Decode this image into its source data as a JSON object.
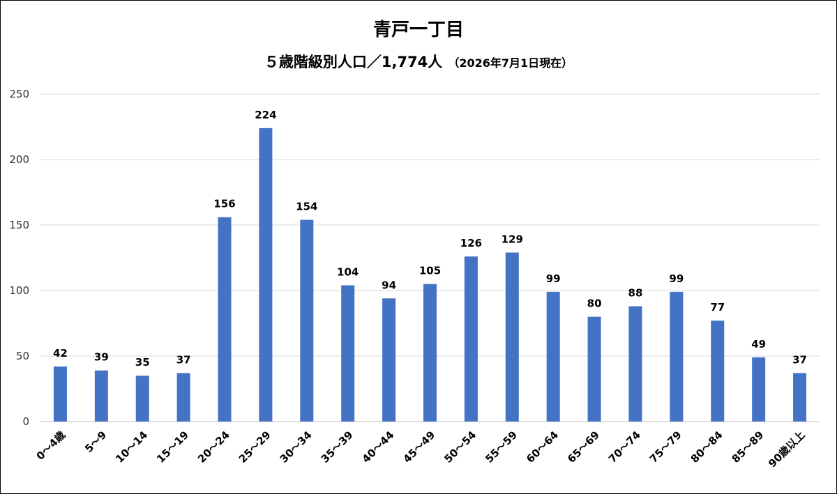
{
  "chart_data": {
    "type": "bar",
    "title": "青戸一丁目",
    "subtitle": "５歳階級別人口／1,774人",
    "subtitle_note": "（2026年7月1日現在）",
    "categories": [
      "0～4歳",
      "5～9",
      "10～14",
      "15～19",
      "20～24",
      "25～29",
      "30～34",
      "35～39",
      "40～44",
      "45～49",
      "50～54",
      "55～59",
      "60～64",
      "65～69",
      "70～74",
      "75～79",
      "80～84",
      "85～89",
      "90歳以上"
    ],
    "series": [
      {
        "values": [
          42,
          39,
          35,
          37,
          156,
          224,
          154,
          104,
          94,
          105,
          126,
          129,
          99,
          80,
          88,
          99,
          77,
          49,
          37
        ]
      }
    ],
    "xlabel": "",
    "ylabel": "",
    "ylim": [
      0,
      250
    ],
    "yticks": [
      0,
      50,
      100,
      150,
      200,
      250
    ],
    "grid": true,
    "legend": "none",
    "data_labels": true,
    "bar_color": "#4472C4",
    "grid_color": "#D9D9D9"
  }
}
